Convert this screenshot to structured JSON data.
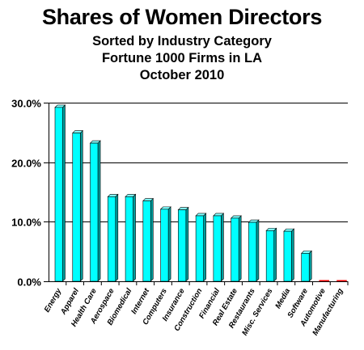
{
  "chart_data": {
    "type": "bar",
    "title": "Shares of Women Directors",
    "subtitle_lines": [
      "Sorted by Industry Category",
      "Fortune 1000 Firms in LA",
      "October 2010"
    ],
    "xlabel": "",
    "ylabel": "",
    "ylim": [
      0,
      30
    ],
    "yticks": [
      "0.0%",
      "10.0%",
      "20.0%",
      "30.0%"
    ],
    "ytick_values": [
      0,
      10,
      20,
      30
    ],
    "grid": true,
    "bar_color": "#00ffff",
    "categories": [
      "Energy",
      "Apparel",
      "Health Care",
      "Aerospace",
      "Biomedical",
      "Internet",
      "Computers",
      "Insurance",
      "Construction",
      "Financial",
      "Real Estate",
      "Restaurants",
      "Misc. Services",
      "Media",
      "Software",
      "Automotive",
      "Manufacturing"
    ],
    "values": [
      29.2,
      24.9,
      23.2,
      14.2,
      14.2,
      13.5,
      12.1,
      12.0,
      11.0,
      11.0,
      10.6,
      9.9,
      8.5,
      8.4,
      4.7,
      0,
      0
    ]
  }
}
